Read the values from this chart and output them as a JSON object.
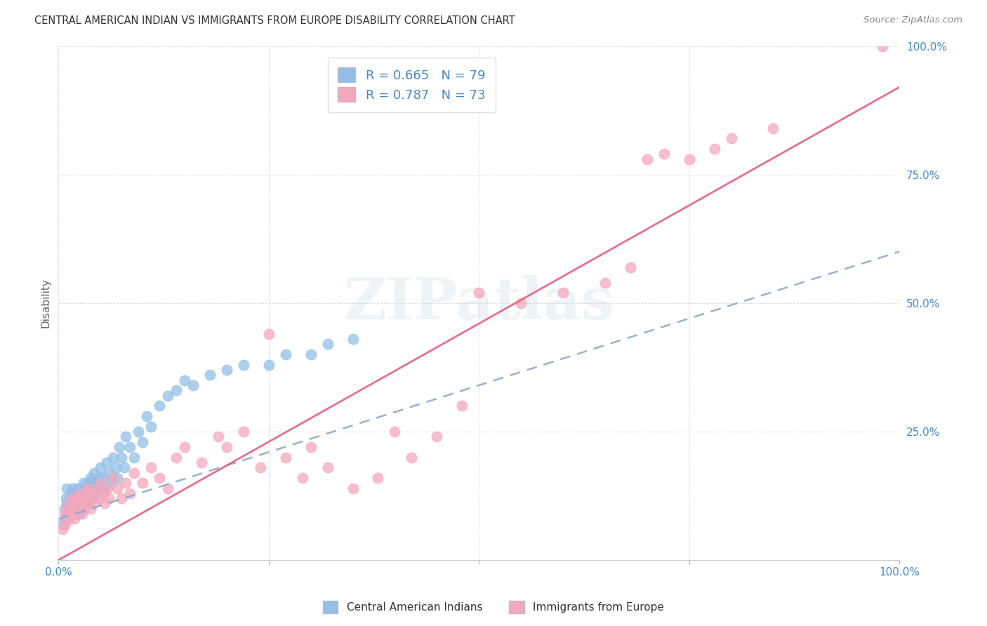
{
  "title": "CENTRAL AMERICAN INDIAN VS IMMIGRANTS FROM EUROPE DISABILITY CORRELATION CHART",
  "source": "Source: ZipAtlas.com",
  "ylabel": "Disability",
  "xlim": [
    0,
    1
  ],
  "ylim": [
    0,
    1
  ],
  "x_ticks": [
    0.0,
    0.25,
    0.5,
    0.75,
    1.0
  ],
  "y_ticks": [
    0.0,
    0.25,
    0.5,
    0.75,
    1.0
  ],
  "x_tick_labels": [
    "0.0%",
    "",
    "",
    "",
    "100.0%"
  ],
  "y_tick_labels": [
    "",
    "25.0%",
    "50.0%",
    "75.0%",
    "100.0%"
  ],
  "blue_color": "#92BEE8",
  "pink_color": "#F4A8BC",
  "blue_line_color": "#8AAACC",
  "pink_line_color": "#E06080",
  "tick_color": "#4488CC",
  "blue_R": 0.665,
  "blue_N": 79,
  "pink_R": 0.787,
  "pink_N": 73,
  "legend_label_blue": "Central American Indians",
  "legend_label_pink": "Immigrants from Europe",
  "watermark": "ZIPatlas",
  "background_color": "#FFFFFF",
  "blue_scatter_x": [
    0.005,
    0.007,
    0.008,
    0.009,
    0.01,
    0.01,
    0.01,
    0.012,
    0.013,
    0.014,
    0.015,
    0.015,
    0.016,
    0.017,
    0.018,
    0.019,
    0.02,
    0.02,
    0.021,
    0.022,
    0.023,
    0.024,
    0.025,
    0.025,
    0.026,
    0.027,
    0.028,
    0.029,
    0.03,
    0.03,
    0.031,
    0.032,
    0.033,
    0.034,
    0.035,
    0.036,
    0.037,
    0.038,
    0.039,
    0.04,
    0.04,
    0.041,
    0.042,
    0.043,
    0.045,
    0.047,
    0.05,
    0.05,
    0.052,
    0.055,
    0.057,
    0.06,
    0.062,
    0.065,
    0.068,
    0.07,
    0.072,
    0.075,
    0.078,
    0.08,
    0.085,
    0.09,
    0.095,
    0.1,
    0.105,
    0.11,
    0.12,
    0.13,
    0.14,
    0.15,
    0.16,
    0.18,
    0.2,
    0.22,
    0.25,
    0.27,
    0.3,
    0.32,
    0.35
  ],
  "blue_scatter_y": [
    0.07,
    0.1,
    0.08,
    0.12,
    0.09,
    0.11,
    0.14,
    0.08,
    0.1,
    0.12,
    0.09,
    0.13,
    0.11,
    0.14,
    0.1,
    0.12,
    0.09,
    0.13,
    0.11,
    0.14,
    0.1,
    0.12,
    0.09,
    0.13,
    0.11,
    0.14,
    0.1,
    0.13,
    0.11,
    0.15,
    0.12,
    0.14,
    0.11,
    0.13,
    0.12,
    0.15,
    0.13,
    0.16,
    0.14,
    0.12,
    0.15,
    0.13,
    0.17,
    0.15,
    0.13,
    0.16,
    0.14,
    0.18,
    0.16,
    0.14,
    0.19,
    0.17,
    0.15,
    0.2,
    0.18,
    0.16,
    0.22,
    0.2,
    0.18,
    0.24,
    0.22,
    0.2,
    0.25,
    0.23,
    0.28,
    0.26,
    0.3,
    0.32,
    0.33,
    0.35,
    0.34,
    0.36,
    0.37,
    0.38,
    0.38,
    0.4,
    0.4,
    0.42,
    0.43
  ],
  "pink_scatter_x": [
    0.005,
    0.007,
    0.008,
    0.01,
    0.012,
    0.013,
    0.015,
    0.016,
    0.018,
    0.019,
    0.02,
    0.021,
    0.023,
    0.024,
    0.025,
    0.027,
    0.028,
    0.03,
    0.031,
    0.033,
    0.034,
    0.035,
    0.037,
    0.038,
    0.04,
    0.042,
    0.045,
    0.048,
    0.05,
    0.053,
    0.055,
    0.058,
    0.06,
    0.065,
    0.07,
    0.075,
    0.08,
    0.085,
    0.09,
    0.1,
    0.11,
    0.12,
    0.13,
    0.14,
    0.15,
    0.17,
    0.19,
    0.2,
    0.22,
    0.24,
    0.25,
    0.27,
    0.29,
    0.3,
    0.32,
    0.35,
    0.38,
    0.4,
    0.42,
    0.45,
    0.48,
    0.5,
    0.55,
    0.6,
    0.65,
    0.68,
    0.7,
    0.72,
    0.75,
    0.78,
    0.8,
    0.85,
    0.98
  ],
  "pink_scatter_y": [
    0.06,
    0.09,
    0.07,
    0.1,
    0.08,
    0.11,
    0.09,
    0.12,
    0.1,
    0.08,
    0.11,
    0.09,
    0.12,
    0.1,
    0.13,
    0.11,
    0.09,
    0.12,
    0.1,
    0.13,
    0.11,
    0.14,
    0.12,
    0.1,
    0.13,
    0.11,
    0.14,
    0.12,
    0.15,
    0.13,
    0.11,
    0.14,
    0.12,
    0.16,
    0.14,
    0.12,
    0.15,
    0.13,
    0.17,
    0.15,
    0.18,
    0.16,
    0.14,
    0.2,
    0.22,
    0.19,
    0.24,
    0.22,
    0.25,
    0.18,
    0.44,
    0.2,
    0.16,
    0.22,
    0.18,
    0.14,
    0.16,
    0.25,
    0.2,
    0.24,
    0.3,
    0.52,
    0.5,
    0.52,
    0.54,
    0.57,
    0.78,
    0.79,
    0.78,
    0.8,
    0.82,
    0.84,
    1.0
  ],
  "pink_line_x0": 0.0,
  "pink_line_y0": 0.0,
  "pink_line_x1": 1.0,
  "pink_line_y1": 0.92,
  "blue_line_x0": 0.0,
  "blue_line_y0": 0.08,
  "blue_line_x1": 1.0,
  "blue_line_y1": 0.6
}
